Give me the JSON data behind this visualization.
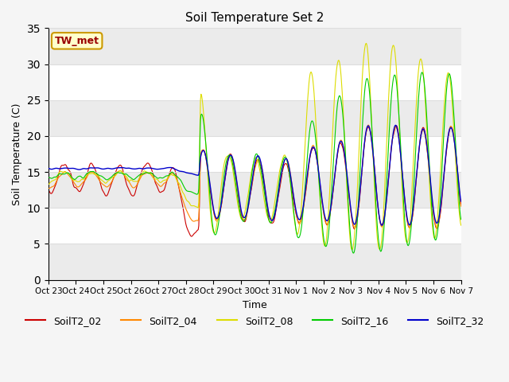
{
  "title": "Soil Temperature Set 2",
  "xlabel": "Time",
  "ylabel": "Soil Temperature (C)",
  "ylim": [
    0,
    35
  ],
  "yticks": [
    0,
    5,
    10,
    15,
    20,
    25,
    30,
    35
  ],
  "annotation": "TW_met",
  "annotation_color": "#990000",
  "annotation_bg": "#ffffcc",
  "annotation_border": "#cc9900",
  "series_colors": {
    "SoilT2_02": "#cc0000",
    "SoilT2_04": "#ff8800",
    "SoilT2_08": "#dddd00",
    "SoilT2_16": "#00cc00",
    "SoilT2_32": "#0000cc"
  },
  "xtick_labels": [
    "Oct 23",
    "Oct 24",
    "Oct 25",
    "Oct 26",
    "Oct 27",
    "Oct 28",
    "Oct 29",
    "Oct 30",
    "Oct 31",
    "Nov 1",
    "Nov 2",
    "Nov 3",
    "Nov 4",
    "Nov 5",
    "Nov 6",
    "Nov 7"
  ],
  "plot_bg": "#ffffff",
  "grid_color": "#dddddd",
  "band_color": "#ebebeb",
  "figsize": [
    6.4,
    4.8
  ],
  "dpi": 100
}
